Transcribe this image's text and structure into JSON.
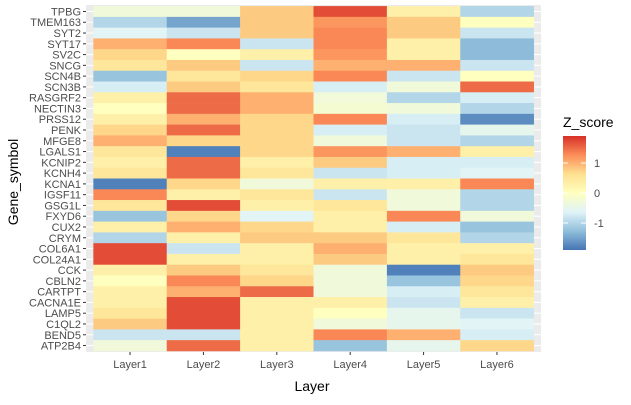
{
  "chart_data": {
    "type": "heatmap",
    "title": "",
    "xlabel": "Layer",
    "ylabel": "Gene_symbol",
    "x_categories": [
      "Layer1",
      "Layer2",
      "Layer3",
      "Layer4",
      "Layer5",
      "Layer6"
    ],
    "y_categories": [
      "TPBG",
      "TMEM163",
      "SYT2",
      "SYT17",
      "SV2C",
      "SNCG",
      "SCN4B",
      "SCN3B",
      "RASGRF2",
      "NECTIN3",
      "PRSS12",
      "PENK",
      "MFGE8",
      "LGALS1",
      "KCNIP2",
      "KCNH4",
      "KCNA1",
      "IGSF11",
      "GSG1L",
      "FXYD6",
      "CUX2",
      "CRYM",
      "COL6A1",
      "COL24A1",
      "CCK",
      "CBLN2",
      "CARTPT",
      "CACNA1E",
      "LAMP5",
      "C1QL2",
      "BEND5",
      "ATP2B4"
    ],
    "values": [
      [
        -0.3,
        -0.3,
        0.8,
        1.7,
        0.3,
        -1.0
      ],
      [
        -1.0,
        -1.5,
        0.8,
        1.2,
        0.8,
        0.0
      ],
      [
        -0.6,
        -0.8,
        0.8,
        1.3,
        0.8,
        -0.8
      ],
      [
        1.0,
        1.3,
        -0.8,
        1.3,
        0.3,
        -1.3
      ],
      [
        0.7,
        0.0,
        0.3,
        1.2,
        0.3,
        -1.3
      ],
      [
        0.5,
        0.8,
        -0.8,
        1.0,
        1.0,
        -0.8
      ],
      [
        -1.2,
        0.5,
        0.7,
        1.3,
        -0.8,
        0.0
      ],
      [
        -0.7,
        0.8,
        0.5,
        -0.7,
        -0.3,
        1.5
      ],
      [
        0.3,
        1.5,
        1.0,
        -0.3,
        -1.0,
        -0.7
      ],
      [
        0.0,
        1.5,
        1.0,
        -0.2,
        -0.3,
        -1.0
      ],
      [
        0.3,
        1.0,
        0.7,
        1.3,
        -0.7,
        -1.7
      ],
      [
        0.7,
        1.5,
        0.7,
        -0.7,
        -0.8,
        -0.5
      ],
      [
        1.0,
        0.7,
        0.7,
        -0.3,
        -0.8,
        -1.0
      ],
      [
        0.5,
        -1.8,
        0.7,
        1.2,
        1.0,
        0.3
      ],
      [
        0.3,
        1.5,
        0.3,
        0.8,
        -0.7,
        -0.7
      ],
      [
        0.5,
        1.5,
        0.5,
        -0.8,
        -0.7,
        -0.6
      ],
      [
        -1.8,
        0.7,
        -0.3,
        0.3,
        0.3,
        1.3
      ],
      [
        1.3,
        0.3,
        0.5,
        -0.8,
        -0.3,
        -1.0
      ],
      [
        0.5,
        1.7,
        0.3,
        0.5,
        -0.3,
        -1.0
      ],
      [
        -1.2,
        0.7,
        -0.6,
        0.3,
        1.3,
        -0.3
      ],
      [
        0.3,
        1.0,
        0.7,
        0.3,
        -0.7,
        -1.2
      ],
      [
        -1.0,
        0.3,
        0.8,
        0.8,
        0.5,
        -1.0
      ],
      [
        1.7,
        -0.8,
        0.3,
        1.0,
        0.3,
        0.3
      ],
      [
        1.7,
        0.3,
        0.3,
        0.8,
        0.3,
        0.5
      ],
      [
        0.3,
        0.8,
        0.5,
        -0.3,
        -1.8,
        0.8
      ],
      [
        0.0,
        1.3,
        0.7,
        -0.3,
        -1.2,
        0.7
      ],
      [
        0.3,
        1.0,
        1.5,
        -0.3,
        -0.7,
        0.5
      ],
      [
        0.3,
        1.7,
        0.3,
        0.3,
        -0.8,
        0.3
      ],
      [
        0.5,
        1.7,
        0.3,
        0.0,
        -0.5,
        -0.8
      ],
      [
        0.8,
        1.7,
        0.3,
        -0.3,
        -0.5,
        -0.6
      ],
      [
        -0.8,
        -0.8,
        0.3,
        1.3,
        1.0,
        -0.7
      ],
      [
        -0.3,
        1.5,
        0.3,
        -1.2,
        -0.5,
        0.7
      ]
    ],
    "legend": {
      "title": "Z_score",
      "ticks": [
        1,
        0,
        -1
      ],
      "placement": "right"
    },
    "colors": {
      "panel_background": "#ebebeb",
      "grid": "#ffffff",
      "text": "#4d4d4d",
      "title_text": "#000000",
      "scale": [
        "#4575b4",
        "#91bfdb",
        "#e0f3f8",
        "#ffffbf",
        "#fee090",
        "#fc8d59",
        "#d73027"
      ]
    },
    "scale_range": [
      -1.9,
      1.9
    ]
  }
}
